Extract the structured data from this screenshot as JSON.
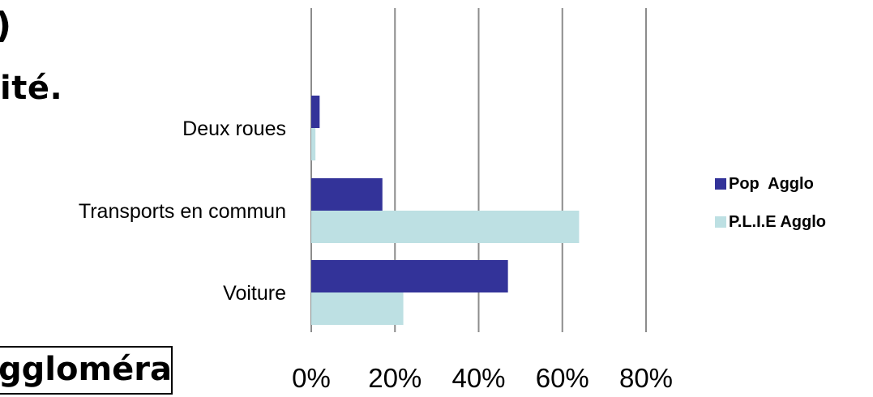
{
  "fragments": {
    "paren": ")",
    "title_tail": "ité.",
    "boxed_text": "ggloméra"
  },
  "chart_data": {
    "type": "bar",
    "orientation": "horizontal",
    "categories": [
      "Deux roues",
      "Transports en commun",
      "Voiture"
    ],
    "series": [
      {
        "name": "Pop  Agglo",
        "color": "#333399",
        "values": [
          2,
          17,
          47
        ]
      },
      {
        "name": "P.L.I.E Agglo",
        "color": "#bde0e3",
        "values": [
          1,
          64,
          22
        ]
      }
    ],
    "xlim": [
      0,
      80
    ],
    "ticks": [
      0,
      20,
      40,
      60,
      80
    ],
    "tick_labels": [
      "0%",
      "20%",
      "40%",
      "60%",
      "80%"
    ],
    "grid": true,
    "legend": "right"
  }
}
